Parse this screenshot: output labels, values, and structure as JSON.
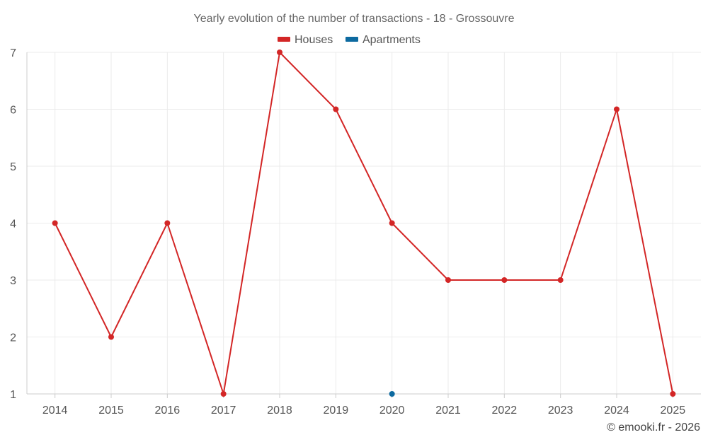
{
  "chart_data": {
    "type": "line",
    "title": "Yearly evolution of the number of transactions - 18 - Grossouvre",
    "x": [
      "2014",
      "2015",
      "2016",
      "2017",
      "2018",
      "2019",
      "2020",
      "2021",
      "2022",
      "2023",
      "2024",
      "2025"
    ],
    "series": [
      {
        "name": "Houses",
        "color": "#d32626",
        "values": [
          4,
          2,
          4,
          1,
          7,
          6,
          4,
          3,
          3,
          3,
          6,
          1
        ]
      },
      {
        "name": "Apartments",
        "color": "#0d6aa0",
        "values": [
          null,
          null,
          null,
          null,
          null,
          null,
          1,
          null,
          null,
          null,
          null,
          null
        ]
      }
    ],
    "ylim": [
      1,
      7
    ],
    "yticks": [
      "1",
      "2",
      "3",
      "4",
      "5",
      "6",
      "7"
    ],
    "grid": true,
    "legend_position": "top-center"
  },
  "credit": "© emooki.fr - 2026"
}
